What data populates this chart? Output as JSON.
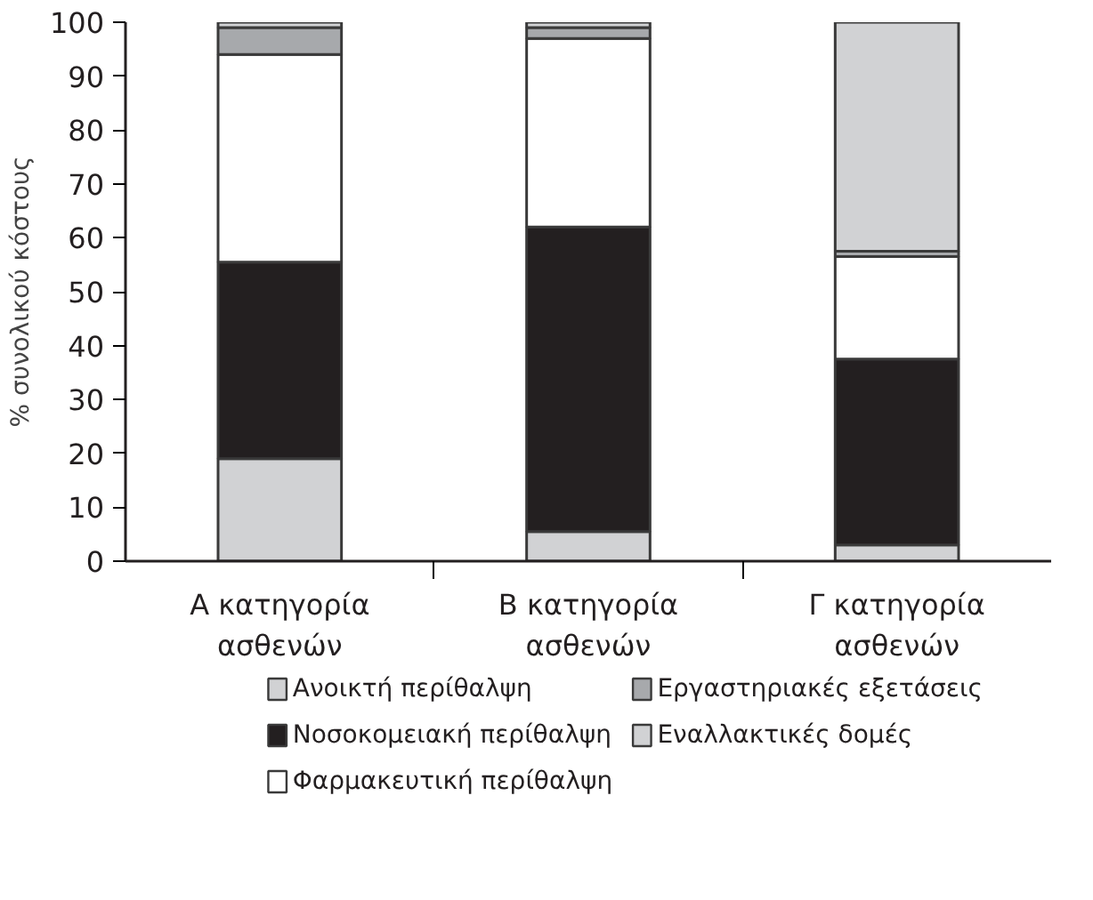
{
  "chart_data": {
    "type": "bar",
    "stacked": true,
    "ylabel": "% συνολικού κόστους",
    "categories": [
      "Α κατηγορία\nασθενών",
      "Β κατηγορία\nασθενών",
      "Γ κατηγορία\nασθενών"
    ],
    "series": [
      {
        "name": "Ανοικτή περίθαλψη",
        "color": "#d1d2d4",
        "values": [
          19,
          5.5,
          3
        ]
      },
      {
        "name": "Νοσοκομειακή περίθαλψη",
        "color": "#231f20",
        "values": [
          36.5,
          56.5,
          34.5
        ]
      },
      {
        "name": "Φαρμακευτική περίθαλψη",
        "color": "#ffffff",
        "values": [
          38.5,
          35,
          19
        ]
      },
      {
        "name": "Εργαστηριακές εξετάσεις",
        "color": "#a7a9ac",
        "values": [
          5,
          2,
          1
        ]
      },
      {
        "name": "Εναλλακτικές δομές",
        "color": "#d1d2d4",
        "values": [
          1,
          1,
          42.5
        ]
      }
    ],
    "ylim": [
      0,
      100
    ],
    "yticks": [
      0,
      10,
      20,
      30,
      40,
      50,
      60,
      70,
      80,
      90,
      100
    ],
    "grid": false,
    "legend": "bottom"
  }
}
